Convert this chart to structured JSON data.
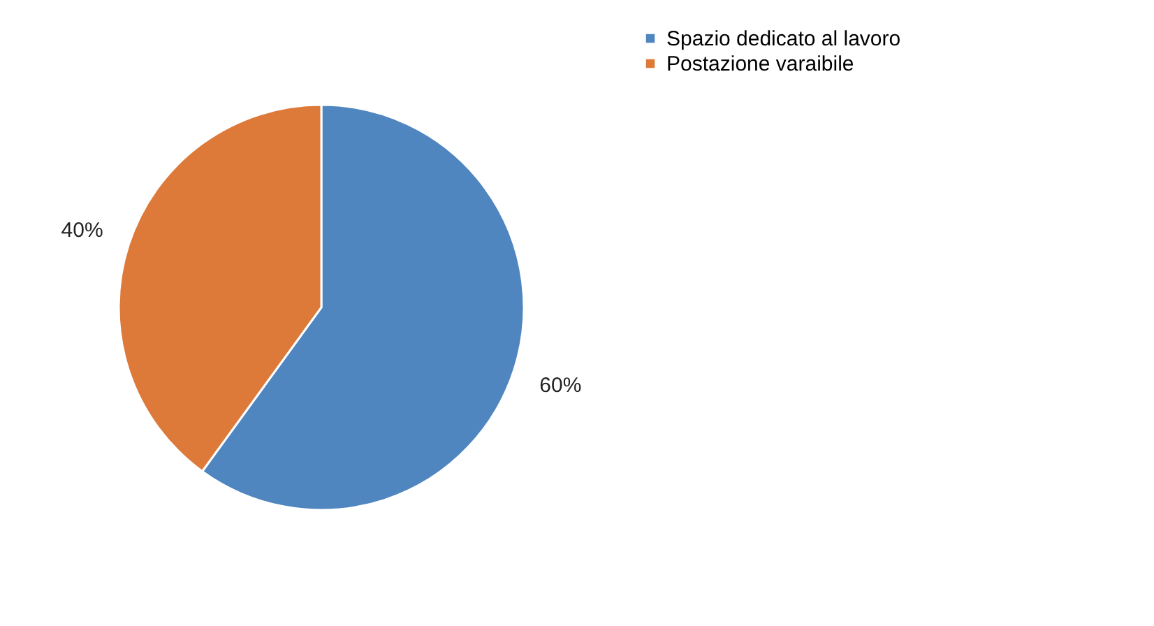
{
  "chart_data": {
    "type": "pie",
    "categories": [
      "Spazio dedicato al lavoro",
      "Postazione varaibile"
    ],
    "values": [
      60,
      40
    ],
    "colors": [
      "#4f86c0",
      "#dd7a3a"
    ],
    "value_labels": [
      "60%",
      "40%"
    ],
    "legend": "right"
  }
}
